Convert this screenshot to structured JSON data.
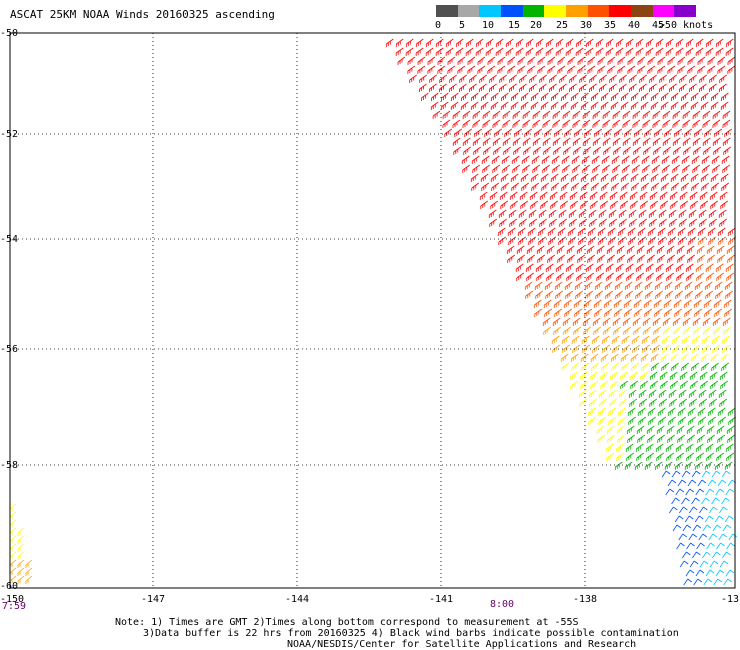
{
  "title": "ASCAT 25KM NOAA Winds 20160325 ascending",
  "colorbar": {
    "colors": [
      "#505050",
      "#a8a8a8",
      "#00c8ff",
      "#0050ff",
      "#00b400",
      "#ffff00",
      "#ffa000",
      "#ff5000",
      "#ff0000",
      "#8b4513",
      "#ff00ff",
      "#8800cc"
    ],
    "labels": [
      "0",
      "5",
      "10",
      "15",
      "20",
      "25",
      "30",
      "35",
      "40",
      "45",
      ">50 knots"
    ]
  },
  "axes": {
    "lat_labels": [
      "-50",
      "-52",
      "-54",
      "-56",
      "-58",
      "-60"
    ],
    "lon_labels": [
      "-150",
      "-147",
      "-144",
      "-141",
      "-138",
      "-13"
    ]
  },
  "times": [
    "7:59",
    "8:00"
  ],
  "notes": [
    "Note: 1) Times are GMT 2)Times along bottom correspond to measurement at -55S",
    "3)Data buffer is 22 hrs from 20160325 4) Black wind barbs indicate possible contamination",
    "NOAA/NESDIS/Center for Satellite Applications and Research"
  ],
  "icons": {
    "barb": "wind-barb-icon"
  }
}
